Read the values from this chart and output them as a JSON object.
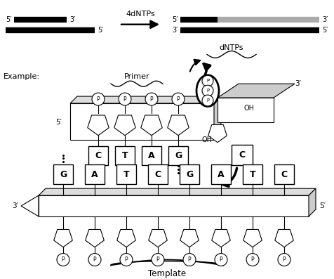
{
  "bg_color": "#ffffff",
  "top_arrow_label": "4dNTPs",
  "dntps_label": "dNTPs",
  "example_label": "Example:",
  "primer_label": "Primer",
  "template_label": "Template",
  "primer_bases": [
    "C",
    "T",
    "A",
    "G"
  ],
  "template_bases": [
    "G",
    "A",
    "T",
    "C",
    "G",
    "A",
    "T",
    "C"
  ],
  "new_base": "C",
  "phosphate_label": "P",
  "oh_label": "OH"
}
